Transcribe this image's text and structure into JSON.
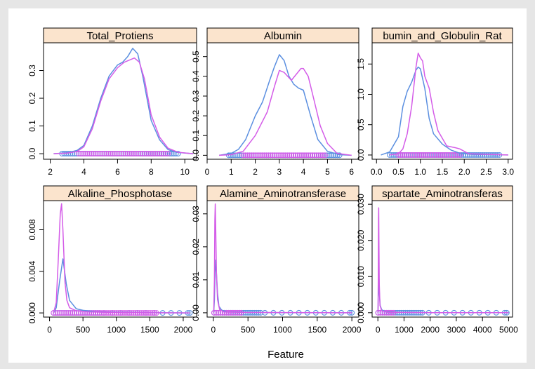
{
  "xlabel": "Feature",
  "colors": {
    "series_a": "#5b8fe0",
    "series_b": "#d45ce8",
    "strip_bg": "#fbe4cd",
    "background": "#e6e6e6"
  },
  "chart_data": [
    {
      "type": "line",
      "title": "Total_Protiens",
      "xlim": [
        1.6,
        10.7
      ],
      "ylim": [
        -0.02,
        0.4
      ],
      "xticks": [
        "2",
        "4",
        "6",
        "8",
        "10"
      ],
      "xtick_values": [
        2,
        4,
        6,
        8,
        10
      ],
      "yticks": [
        "0.0",
        "0.1",
        "0.2",
        "0.3"
      ],
      "ytick_values": [
        0,
        0.1,
        0.2,
        0.3
      ],
      "series": [
        {
          "x": [
            2.2,
            3.0,
            3.6,
            4.0,
            4.5,
            5.0,
            5.5,
            6.0,
            6.3,
            6.6,
            6.9,
            7.2,
            7.5,
            8.0,
            8.5,
            9.0,
            9.5,
            10.5
          ],
          "y": [
            0,
            0.003,
            0.012,
            0.03,
            0.1,
            0.2,
            0.28,
            0.32,
            0.33,
            0.35,
            0.38,
            0.36,
            0.28,
            0.12,
            0.05,
            0.015,
            0.005,
            0
          ]
        },
        {
          "x": [
            2.2,
            3.0,
            3.6,
            4.0,
            4.5,
            5.0,
            5.5,
            6.0,
            6.4,
            6.8,
            7.0,
            7.3,
            7.6,
            8.0,
            8.5,
            9.0,
            9.6,
            10.5
          ],
          "y": [
            0,
            0.002,
            0.008,
            0.025,
            0.09,
            0.19,
            0.27,
            0.31,
            0.33,
            0.34,
            0.345,
            0.33,
            0.27,
            0.14,
            0.06,
            0.02,
            0.005,
            0
          ]
        }
      ],
      "rug_a_range": [
        2.7,
        9.6
      ],
      "rug_b_range": [
        3.7,
        9.0
      ]
    },
    {
      "type": "line",
      "title": "Albumin",
      "xlim": [
        0.0,
        6.3
      ],
      "ylim": [
        -0.02,
        0.57
      ],
      "xticks": [
        "0",
        "1",
        "2",
        "3",
        "4",
        "5",
        "6"
      ],
      "xtick_values": [
        0,
        1,
        2,
        3,
        4,
        5,
        6
      ],
      "yticks": [
        "0.0",
        "0.1",
        "0.2",
        "0.3",
        "0.4",
        "0.5"
      ],
      "ytick_values": [
        0,
        0.1,
        0.2,
        0.3,
        0.4,
        0.5
      ],
      "series": [
        {
          "x": [
            0.5,
            1.0,
            1.3,
            1.6,
            2.0,
            2.3,
            2.6,
            2.8,
            3.0,
            3.2,
            3.4,
            3.6,
            3.8,
            4.0,
            4.3,
            4.6,
            5.0,
            5.5,
            6.0
          ],
          "y": [
            0,
            0.01,
            0.03,
            0.08,
            0.2,
            0.27,
            0.38,
            0.45,
            0.51,
            0.48,
            0.4,
            0.36,
            0.34,
            0.33,
            0.2,
            0.08,
            0.02,
            0.003,
            0
          ]
        },
        {
          "x": [
            0.5,
            1.0,
            1.5,
            2.0,
            2.5,
            2.8,
            3.0,
            3.2,
            3.5,
            3.7,
            3.9,
            4.0,
            4.2,
            4.4,
            4.7,
            5.0,
            5.4,
            6.0
          ],
          "y": [
            0,
            0.003,
            0.02,
            0.1,
            0.22,
            0.35,
            0.43,
            0.42,
            0.38,
            0.41,
            0.44,
            0.44,
            0.4,
            0.3,
            0.15,
            0.06,
            0.01,
            0
          ]
        }
      ],
      "rug_a_range": [
        0.9,
        5.5
      ],
      "rug_b_range": [
        1.5,
        4.9
      ]
    },
    {
      "type": "line",
      "title": "bumin_and_Globulin_Rat",
      "xlim": [
        -0.1,
        3.1
      ],
      "ylim": [
        -0.07,
        1.85
      ],
      "xticks": [
        "0.0",
        "0.5",
        "1.0",
        "1.5",
        "2.0",
        "2.5",
        "3.0"
      ],
      "xtick_values": [
        0,
        0.5,
        1,
        1.5,
        2,
        2.5,
        3
      ],
      "yticks": [
        "0.0",
        "0.5",
        "1.0",
        "1.5"
      ],
      "ytick_values": [
        0,
        0.5,
        1,
        1.5
      ],
      "series": [
        {
          "x": [
            0.1,
            0.3,
            0.5,
            0.6,
            0.7,
            0.8,
            0.9,
            0.95,
            1.0,
            1.1,
            1.2,
            1.3,
            1.5,
            1.7,
            1.9,
            2.2,
            2.5,
            3.0
          ],
          "y": [
            0,
            0.05,
            0.3,
            0.8,
            1.05,
            1.2,
            1.4,
            1.45,
            1.42,
            1.1,
            0.6,
            0.35,
            0.18,
            0.08,
            0.03,
            0.01,
            0.005,
            0
          ]
        },
        {
          "x": [
            0.3,
            0.5,
            0.6,
            0.7,
            0.8,
            0.9,
            0.95,
            1.0,
            1.05,
            1.1,
            1.2,
            1.3,
            1.4,
            1.6,
            1.8,
            1.9,
            2.1,
            3.0
          ],
          "y": [
            0,
            0.02,
            0.1,
            0.35,
            0.8,
            1.45,
            1.68,
            1.6,
            1.55,
            1.3,
            1.1,
            0.7,
            0.4,
            0.15,
            0.12,
            0.1,
            0.02,
            0
          ]
        }
      ],
      "rug_a_range": [
        0.3,
        2.8
      ],
      "rug_b_range": [
        0.5,
        1.9
      ]
    },
    {
      "type": "line",
      "title": "Alkaline_Phosphotase",
      "xlim": [
        -90,
        2200
      ],
      "ylim": [
        -0.0004,
        0.0108
      ],
      "xticks": [
        "0",
        "500",
        "1000",
        "1500",
        "2000"
      ],
      "xtick_values": [
        0,
        500,
        1000,
        1500,
        2000
      ],
      "yticks": [
        "0.000",
        "0.004",
        "0.008"
      ],
      "ytick_values": [
        0,
        0.004,
        0.008
      ],
      "series": [
        {
          "x": [
            60,
            100,
            150,
            200,
            250,
            300,
            400,
            500,
            700,
            1000,
            1500,
            2100
          ],
          "y": [
            0,
            0.0005,
            0.003,
            0.0052,
            0.0028,
            0.0012,
            0.0004,
            0.00025,
            0.0001,
            5e-05,
            2e-05,
            0
          ]
        },
        {
          "x": [
            60,
            100,
            130,
            160,
            180,
            200,
            230,
            260,
            300,
            400,
            600,
            1000,
            1600,
            2100
          ],
          "y": [
            0,
            0.001,
            0.005,
            0.0095,
            0.0105,
            0.008,
            0.003,
            0.0012,
            0.0005,
            0.0002,
            0.0001,
            3e-05,
            1e-05,
            0
          ]
        }
      ],
      "rug_a_range": [
        60,
        2100
      ],
      "rug_b_range": [
        60,
        1600
      ]
    },
    {
      "type": "line",
      "title": "Alamine_Aminotransferase",
      "xlim": [
        -90,
        2100
      ],
      "ylim": [
        -0.0013,
        0.034
      ],
      "xticks": [
        "0",
        "500",
        "1000",
        "1500",
        "2000"
      ],
      "xtick_values": [
        0,
        500,
        1000,
        1500,
        2000
      ],
      "yticks": [
        "0.00",
        "0.01",
        "0.02",
        "0.03"
      ],
      "ytick_values": [
        0,
        0.01,
        0.02,
        0.03
      ],
      "series": [
        {
          "x": [
            5,
            15,
            25,
            35,
            45,
            60,
            80,
            120,
            200,
            500,
            1000,
            2000
          ],
          "y": [
            0,
            0.004,
            0.012,
            0.016,
            0.012,
            0.006,
            0.002,
            0.0008,
            0.0003,
            0.0001,
            3e-05,
            0
          ]
        },
        {
          "x": [
            5,
            15,
            22,
            28,
            35,
            45,
            60,
            90,
            150,
            400,
            2000
          ],
          "y": [
            0,
            0.01,
            0.028,
            0.033,
            0.025,
            0.012,
            0.004,
            0.001,
            0.0003,
            0.0001,
            0
          ]
        }
      ],
      "rug_a_range": [
        10,
        2000
      ],
      "rug_b_range": [
        10,
        400
      ]
    },
    {
      "type": "line",
      "title": "spartate_Aminotransferas",
      "xlim": [
        -220,
        5150
      ],
      "ylim": [
        -0.0012,
        0.031
      ],
      "xticks": [
        "0",
        "1000",
        "2000",
        "3000",
        "4000",
        "5000"
      ],
      "xtick_values": [
        0,
        1000,
        2000,
        3000,
        4000,
        5000
      ],
      "yticks": [
        "0.000",
        "0.010",
        "0.020",
        "0.030"
      ],
      "ytick_values": [
        0,
        0.01,
        0.02,
        0.03
      ],
      "series": [
        {
          "x": [
            5,
            20,
            30,
            45,
            60,
            90,
            150,
            300,
            800,
            2000,
            5000
          ],
          "y": [
            0,
            0.006,
            0.01,
            0.009,
            0.005,
            0.002,
            0.0008,
            0.0003,
            0.0001,
            2e-05,
            0
          ]
        },
        {
          "x": [
            5,
            15,
            25,
            32,
            40,
            55,
            80,
            150,
            400,
            2000,
            5000
          ],
          "y": [
            0,
            0.01,
            0.026,
            0.029,
            0.02,
            0.008,
            0.002,
            0.0005,
            0.0001,
            2e-05,
            0
          ]
        }
      ],
      "rug_a_range": [
        10,
        4930
      ],
      "rug_b_range": [
        10,
        600
      ]
    }
  ]
}
